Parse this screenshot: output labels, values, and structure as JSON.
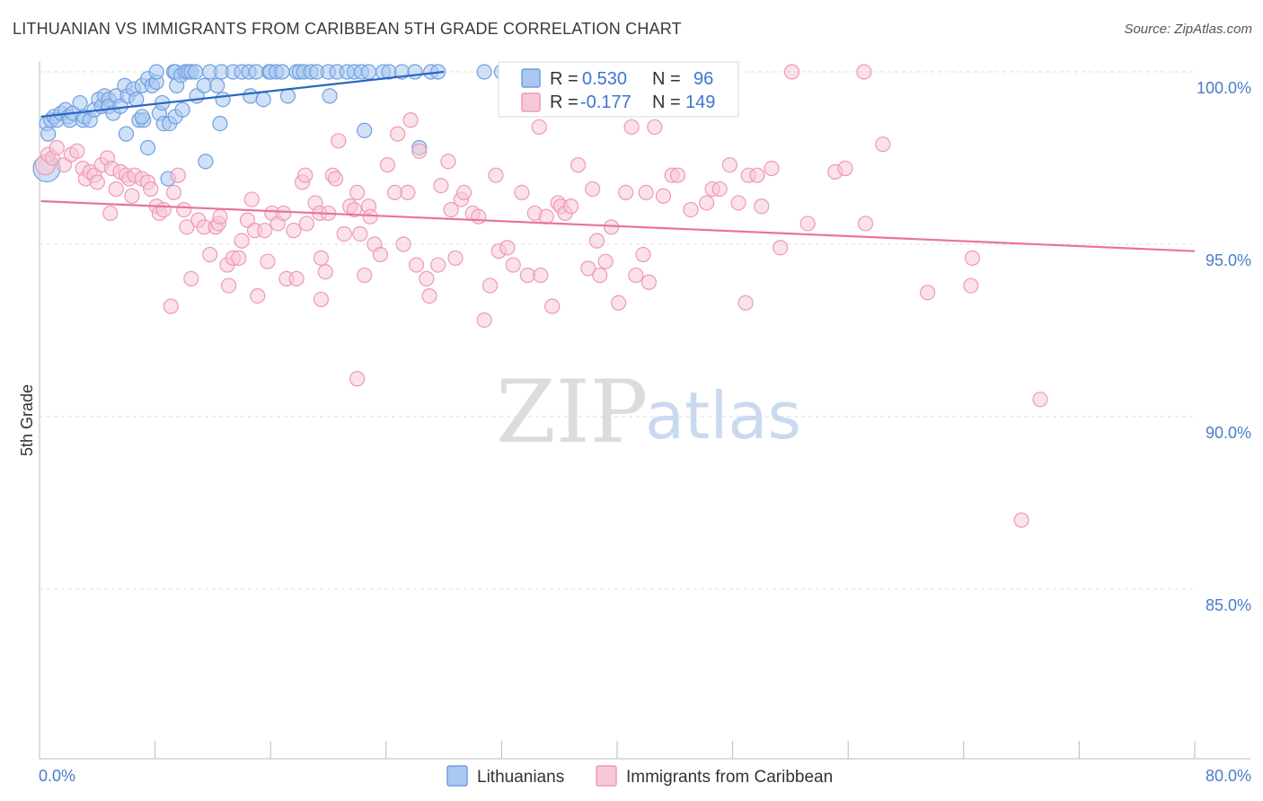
{
  "title": "LITHUANIAN VS IMMIGRANTS FROM CARIBBEAN 5TH GRADE CORRELATION CHART",
  "source": "Source: ZipAtlas.com",
  "watermark": {
    "zip": "ZIP",
    "atlas": "atlas"
  },
  "legend": {
    "r_label": "R =",
    "n_label": "N =",
    "rows": [
      {
        "r": "0.530",
        "n": "96"
      },
      {
        "r": "-0.177",
        "n": "149"
      }
    ]
  },
  "chart_data": {
    "type": "scatter",
    "xlabel": "",
    "ylabel": "5th Grade",
    "xlim": [
      0,
      80
    ],
    "ylim": [
      80.5,
      100.8
    ],
    "x_tick_labels": [
      {
        "value": 0,
        "label": "0.0%"
      },
      {
        "value": 80,
        "label": "80.0%"
      }
    ],
    "y_tick_labels": [
      {
        "value": 100,
        "label": "100.0%"
      },
      {
        "value": 95,
        "label": "95.0%"
      },
      {
        "value": 90,
        "label": "90.0%"
      },
      {
        "value": 85,
        "label": "85.0%"
      }
    ],
    "x_minor_ticks": [
      0,
      8,
      16,
      24,
      32,
      40,
      48,
      56,
      64,
      72,
      80
    ],
    "series": [
      {
        "name": "Lithuanians",
        "color": "#6f9fe0",
        "fill": "#a9c8f0",
        "line_color": "#2a66c4",
        "trend": [
          [
            0.1,
            98.7
          ],
          [
            28,
            100.0
          ]
        ],
        "points": [
          [
            0.5,
            97.2
          ],
          [
            0.5,
            98.5
          ],
          [
            0.6,
            98.2
          ],
          [
            0.8,
            98.6
          ],
          [
            1.0,
            98.7
          ],
          [
            1.2,
            98.6
          ],
          [
            1.5,
            98.8
          ],
          [
            1.8,
            98.9
          ],
          [
            2.0,
            98.7
          ],
          [
            2.1,
            98.6
          ],
          [
            2.3,
            98.8
          ],
          [
            2.8,
            99.1
          ],
          [
            3.0,
            98.6
          ],
          [
            3.1,
            98.7
          ],
          [
            3.5,
            98.6
          ],
          [
            3.8,
            98.9
          ],
          [
            4.1,
            99.2
          ],
          [
            4.3,
            99.0
          ],
          [
            4.5,
            99.3
          ],
          [
            4.8,
            99.2
          ],
          [
            4.8,
            99.0
          ],
          [
            5.1,
            98.8
          ],
          [
            5.3,
            99.3
          ],
          [
            5.6,
            99.0
          ],
          [
            5.9,
            99.6
          ],
          [
            6.0,
            98.2
          ],
          [
            6.1,
            99.3
          ],
          [
            6.5,
            99.5
          ],
          [
            6.7,
            99.2
          ],
          [
            6.9,
            98.6
          ],
          [
            7.1,
            99.6
          ],
          [
            7.2,
            98.6
          ],
          [
            7.1,
            98.7
          ],
          [
            7.5,
            99.8
          ],
          [
            7.5,
            97.8
          ],
          [
            7.8,
            99.6
          ],
          [
            8.1,
            99.7
          ],
          [
            8.1,
            100.0
          ],
          [
            8.3,
            98.8
          ],
          [
            8.5,
            99.1
          ],
          [
            8.6,
            98.5
          ],
          [
            8.9,
            96.9
          ],
          [
            9.0,
            98.5
          ],
          [
            9.3,
            100.0
          ],
          [
            9.4,
            98.7
          ],
          [
            9.5,
            99.6
          ],
          [
            9.4,
            100.0
          ],
          [
            9.8,
            99.9
          ],
          [
            9.9,
            98.9
          ],
          [
            10.1,
            100.0
          ],
          [
            10.3,
            100.0
          ],
          [
            10.5,
            100.0
          ],
          [
            10.8,
            100.0
          ],
          [
            10.9,
            99.3
          ],
          [
            11.4,
            99.6
          ],
          [
            11.5,
            97.4
          ],
          [
            11.8,
            100.0
          ],
          [
            12.3,
            99.6
          ],
          [
            12.5,
            98.5
          ],
          [
            12.6,
            100.0
          ],
          [
            12.7,
            99.2
          ],
          [
            13.4,
            100.0
          ],
          [
            14.0,
            100.0
          ],
          [
            14.6,
            99.3
          ],
          [
            14.5,
            100.0
          ],
          [
            15.0,
            100.0
          ],
          [
            15.5,
            99.2
          ],
          [
            15.9,
            100.0
          ],
          [
            16.0,
            100.0
          ],
          [
            16.4,
            100.0
          ],
          [
            16.8,
            100.0
          ],
          [
            17.2,
            99.3
          ],
          [
            17.8,
            100.0
          ],
          [
            18.0,
            100.0
          ],
          [
            18.3,
            100.0
          ],
          [
            18.8,
            100.0
          ],
          [
            19.2,
            100.0
          ],
          [
            20.0,
            100.0
          ],
          [
            20.1,
            99.3
          ],
          [
            20.6,
            100.0
          ],
          [
            21.3,
            100.0
          ],
          [
            21.8,
            100.0
          ],
          [
            22.3,
            100.0
          ],
          [
            22.5,
            98.3
          ],
          [
            22.8,
            100.0
          ],
          [
            23.8,
            100.0
          ],
          [
            24.2,
            100.0
          ],
          [
            25.1,
            100.0
          ],
          [
            26.0,
            100.0
          ],
          [
            26.3,
            97.8
          ],
          [
            27.1,
            100.0
          ],
          [
            27.6,
            100.0
          ],
          [
            30.8,
            100.0
          ],
          [
            32.0,
            100.0
          ],
          [
            34.0,
            100.0
          ]
        ]
      },
      {
        "name": "Immigrants from Caribbean",
        "color": "#ee9ab4",
        "fill": "#f8c8d6",
        "line_color": "#e8739a",
        "trend": [
          [
            0.1,
            96.25
          ],
          [
            80,
            94.8
          ]
        ],
        "points": [
          [
            0.4,
            97.3
          ],
          [
            0.6,
            97.6
          ],
          [
            0.9,
            97.5
          ],
          [
            1.2,
            97.8
          ],
          [
            1.7,
            97.3
          ],
          [
            2.2,
            97.6
          ],
          [
            2.6,
            97.7
          ],
          [
            3.0,
            97.2
          ],
          [
            3.2,
            96.9
          ],
          [
            3.5,
            97.1
          ],
          [
            3.8,
            97.0
          ],
          [
            4.0,
            96.8
          ],
          [
            4.3,
            97.3
          ],
          [
            4.7,
            97.5
          ],
          [
            4.9,
            95.9
          ],
          [
            5.0,
            97.2
          ],
          [
            5.3,
            96.6
          ],
          [
            5.6,
            97.1
          ],
          [
            6.0,
            97.0
          ],
          [
            6.2,
            96.9
          ],
          [
            6.4,
            96.4
          ],
          [
            6.6,
            97.0
          ],
          [
            7.1,
            96.9
          ],
          [
            7.5,
            96.8
          ],
          [
            7.7,
            96.6
          ],
          [
            8.1,
            96.1
          ],
          [
            8.3,
            95.9
          ],
          [
            8.6,
            96.0
          ],
          [
            9.1,
            93.2
          ],
          [
            9.3,
            96.5
          ],
          [
            9.6,
            97.0
          ],
          [
            10.0,
            96.0
          ],
          [
            10.2,
            95.5
          ],
          [
            10.5,
            94.0
          ],
          [
            11.0,
            95.7
          ],
          [
            11.4,
            95.5
          ],
          [
            11.8,
            94.7
          ],
          [
            12.2,
            95.5
          ],
          [
            12.4,
            95.6
          ],
          [
            12.5,
            95.8
          ],
          [
            13.0,
            94.4
          ],
          [
            13.1,
            93.8
          ],
          [
            13.4,
            94.6
          ],
          [
            13.8,
            94.6
          ],
          [
            14.0,
            95.1
          ],
          [
            14.4,
            95.7
          ],
          [
            14.7,
            96.3
          ],
          [
            14.9,
            95.4
          ],
          [
            15.1,
            93.5
          ],
          [
            15.6,
            95.4
          ],
          [
            15.8,
            94.5
          ],
          [
            16.1,
            95.9
          ],
          [
            16.5,
            95.6
          ],
          [
            16.9,
            95.9
          ],
          [
            17.1,
            94.0
          ],
          [
            17.6,
            95.4
          ],
          [
            17.8,
            94.0
          ],
          [
            18.2,
            96.8
          ],
          [
            18.4,
            97.0
          ],
          [
            18.5,
            95.6
          ],
          [
            19.1,
            96.2
          ],
          [
            19.4,
            95.9
          ],
          [
            19.5,
            93.4
          ],
          [
            19.8,
            94.2
          ],
          [
            19.5,
            94.6
          ],
          [
            20.0,
            95.9
          ],
          [
            20.3,
            97.0
          ],
          [
            20.5,
            96.9
          ],
          [
            20.7,
            98.0
          ],
          [
            21.1,
            95.3
          ],
          [
            21.5,
            96.1
          ],
          [
            21.8,
            96.0
          ],
          [
            22.0,
            96.5
          ],
          [
            22.2,
            95.3
          ],
          [
            22.5,
            94.1
          ],
          [
            22.8,
            96.1
          ],
          [
            23.2,
            95.0
          ],
          [
            23.6,
            94.7
          ],
          [
            24.1,
            97.3
          ],
          [
            24.6,
            96.5
          ],
          [
            24.8,
            98.2
          ],
          [
            25.2,
            95.0
          ],
          [
            25.5,
            96.5
          ],
          [
            26.1,
            94.4
          ],
          [
            26.3,
            97.7
          ],
          [
            26.8,
            94.0
          ],
          [
            27.0,
            93.5
          ],
          [
            27.6,
            94.4
          ],
          [
            27.8,
            96.7
          ],
          [
            28.3,
            97.4
          ],
          [
            28.5,
            96.0
          ],
          [
            28.8,
            94.6
          ],
          [
            29.2,
            96.3
          ],
          [
            29.4,
            96.5
          ],
          [
            30.0,
            95.9
          ],
          [
            30.4,
            95.8
          ],
          [
            30.8,
            92.8
          ],
          [
            31.2,
            93.8
          ],
          [
            31.6,
            97.0
          ],
          [
            31.8,
            94.8
          ],
          [
            32.4,
            94.9
          ],
          [
            32.8,
            94.4
          ],
          [
            33.4,
            96.5
          ],
          [
            33.8,
            94.1
          ],
          [
            34.3,
            95.9
          ],
          [
            34.7,
            94.1
          ],
          [
            35.1,
            95.8
          ],
          [
            35.5,
            93.2
          ],
          [
            35.9,
            96.2
          ],
          [
            36.1,
            96.1
          ],
          [
            36.4,
            95.9
          ],
          [
            36.8,
            96.1
          ],
          [
            37.3,
            97.3
          ],
          [
            38.0,
            94.3
          ],
          [
            38.3,
            96.6
          ],
          [
            38.6,
            95.1
          ],
          [
            38.8,
            94.1
          ],
          [
            39.2,
            94.5
          ],
          [
            39.6,
            95.5
          ],
          [
            40.1,
            93.3
          ],
          [
            40.6,
            96.5
          ],
          [
            41.0,
            98.4
          ],
          [
            41.3,
            94.1
          ],
          [
            41.8,
            94.7
          ],
          [
            42.0,
            96.5
          ],
          [
            42.2,
            93.9
          ],
          [
            42.6,
            98.4
          ],
          [
            43.2,
            96.4
          ],
          [
            43.8,
            97.0
          ],
          [
            44.2,
            97.0
          ],
          [
            45.1,
            96.0
          ],
          [
            46.2,
            96.2
          ],
          [
            46.6,
            96.6
          ],
          [
            47.1,
            96.6
          ],
          [
            47.8,
            97.3
          ],
          [
            48.4,
            96.2
          ],
          [
            48.9,
            93.3
          ],
          [
            49.1,
            97.0
          ],
          [
            49.7,
            97.0
          ],
          [
            50.0,
            96.1
          ],
          [
            50.7,
            97.2
          ],
          [
            51.3,
            94.9
          ],
          [
            52.1,
            100.0
          ],
          [
            53.2,
            95.6
          ],
          [
            55.1,
            97.1
          ],
          [
            55.8,
            97.2
          ],
          [
            57.2,
            95.6
          ],
          [
            57.1,
            100.0
          ],
          [
            58.4,
            97.9
          ],
          [
            61.5,
            93.6
          ],
          [
            64.5,
            93.8
          ],
          [
            64.6,
            94.6
          ],
          [
            68.0,
            87.0
          ],
          [
            69.3,
            90.5
          ],
          [
            22.0,
            91.1
          ],
          [
            34.6,
            98.4
          ],
          [
            25.7,
            98.6
          ],
          [
            22.9,
            95.8
          ]
        ]
      }
    ]
  },
  "bottom_legend": [
    {
      "label": "Lithuanians"
    },
    {
      "label": "Immigrants from Caribbean"
    }
  ]
}
